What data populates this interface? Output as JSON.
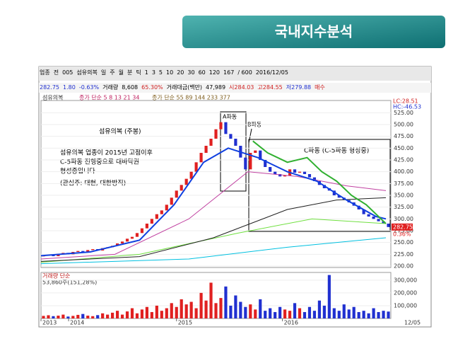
{
  "title": "국내지수분석",
  "toolbar": [
    "업종",
    "전",
    "005",
    "섬유의복",
    "일",
    "주",
    "월",
    "분",
    "틱",
    "1",
    "3",
    "5",
    "10",
    "20",
    "30",
    "60",
    "120",
    "167",
    "/ 600",
    "2016/12/05"
  ],
  "quote": {
    "price": "282.75",
    "change": "1.80",
    "rate": "-0.63%",
    "volume_label": "거래량",
    "volume": "8,608",
    "volume_rate": "65.30%",
    "amount_label": "거래대금(백만)",
    "amount": "47,989",
    "open": "시284.03",
    "high": "고284.55",
    "low": "저279.88",
    "button": "매수"
  },
  "chart_data": {
    "type": "candlestick",
    "name": "섬유의복",
    "legend_ma1": "종가 단순 5 8 13 21 34",
    "legend_ma2": "종가 단순 55 89 144 233 377",
    "lc": "LC:28.51",
    "hc": "HC:-46.53",
    "last_label": "282.75",
    "last_rate": "0.36%",
    "date_label": "12/05",
    "notes": [
      "섬유의복 (주봉)",
      "섬유의복 업종이 2015년 고점이후",
      "C-5파동 진행중으로 대바닥권",
      "형성중입니다",
      "(관심주: 대현, 대한방직)",
      "A파동",
      "B파동",
      "C파동 (C-5파동 형성중)"
    ],
    "up_color": "#e02020",
    "down_color": "#2030d0",
    "xlim": [
      0,
      71
    ],
    "xticks": [
      {
        "value": 0,
        "label": "2013"
      },
      {
        "value": 5.6,
        "label": "2014"
      },
      {
        "value": 27.5,
        "label": "2015"
      },
      {
        "value": 49,
        "label": "2016"
      }
    ],
    "ylim": [
      197,
      551
    ],
    "yticks": [
      {
        "value": 200,
        "label": "200.00"
      },
      {
        "value": 225,
        "label": "225.00"
      },
      {
        "value": 250,
        "label": "250.00"
      },
      {
        "value": 275,
        "label": "275.00"
      },
      {
        "value": 300,
        "label": "300.00"
      },
      {
        "value": 325,
        "label": "325.00"
      },
      {
        "value": 350,
        "label": "350.00"
      },
      {
        "value": 375,
        "label": "375.00"
      },
      {
        "value": 400,
        "label": "400.00"
      },
      {
        "value": 425,
        "label": "425.00"
      },
      {
        "value": 450,
        "label": "450.00"
      },
      {
        "value": 475,
        "label": "475.00"
      },
      {
        "value": 500,
        "label": "500.00"
      },
      {
        "value": 525,
        "label": "525.00"
      }
    ],
    "closes": [
      222,
      224,
      221,
      226,
      228,
      225,
      230,
      232,
      229,
      234,
      236,
      233,
      238,
      240,
      243,
      248,
      252,
      258,
      262,
      270,
      280,
      290,
      300,
      310,
      318,
      330,
      345,
      360,
      372,
      385,
      400,
      420,
      440,
      455,
      470,
      490,
      505,
      480,
      470,
      455,
      430,
      405,
      440,
      445,
      425,
      410,
      400,
      395,
      390,
      392,
      405,
      398,
      400,
      395,
      388,
      380,
      372,
      365,
      360,
      350,
      345,
      340,
      335,
      328,
      320,
      310,
      305,
      300,
      295,
      290,
      282.75
    ],
    "lines": [
      {
        "color": "#00c0e0",
        "x": [
          0,
          30,
          50,
          70
        ],
        "values": [
          205,
          215,
          240,
          260
        ]
      },
      {
        "color": "#70e040",
        "x": [
          0,
          20,
          40,
          55,
          70
        ],
        "values": [
          208,
          225,
          270,
          300,
          290
        ]
      },
      {
        "color": "#202020",
        "x": [
          0,
          20,
          35,
          50,
          60,
          70
        ],
        "values": [
          210,
          220,
          260,
          320,
          340,
          345
        ]
      },
      {
        "color": "#c040a0",
        "x": [
          0,
          15,
          30,
          42,
          52,
          62,
          70
        ],
        "values": [
          215,
          225,
          300,
          400,
          390,
          370,
          360
        ]
      },
      {
        "color": "#1040e0",
        "x": [
          0,
          10,
          20,
          27,
          33,
          38,
          44,
          50,
          56,
          62,
          68,
          70
        ],
        "values": [
          222,
          230,
          255,
          330,
          420,
          450,
          430,
          400,
          380,
          340,
          305,
          300
        ]
      },
      {
        "color": "#30b030",
        "x": [
          43,
          46,
          50,
          54,
          57,
          60,
          63,
          66,
          70
        ],
        "values": [
          465,
          440,
          420,
          430,
          400,
          380,
          350,
          330,
          290
        ]
      }
    ],
    "volume": {
      "label": "거래량 단순",
      "info": "53,860주(151,28%)",
      "ylim": [
        0,
        360000
      ],
      "yticks": [
        {
          "value": 100000,
          "label": "100,000"
        },
        {
          "value": 200000,
          "label": "200,000"
        },
        {
          "value": 300000,
          "label": "300,000"
        }
      ],
      "values": [
        20000,
        25000,
        18000,
        22000,
        30000,
        15000,
        20000,
        28000,
        35000,
        22000,
        18000,
        26000,
        40000,
        30000,
        45000,
        60000,
        30000,
        55000,
        80000,
        40000,
        70000,
        90000,
        50000,
        100000,
        60000,
        80000,
        120000,
        90000,
        150000,
        110000,
        130000,
        80000,
        200000,
        140000,
        280000,
        120000,
        160000,
        250000,
        100000,
        180000,
        130000,
        90000,
        110000,
        70000,
        150000,
        60000,
        80000,
        50000,
        90000,
        70000,
        60000,
        120000,
        80000,
        50000,
        90000,
        60000,
        140000,
        100000,
        340000,
        80000,
        60000,
        110000,
        70000,
        90000,
        50000,
        60000,
        40000,
        80000,
        50000,
        60000,
        53860
      ]
    }
  }
}
